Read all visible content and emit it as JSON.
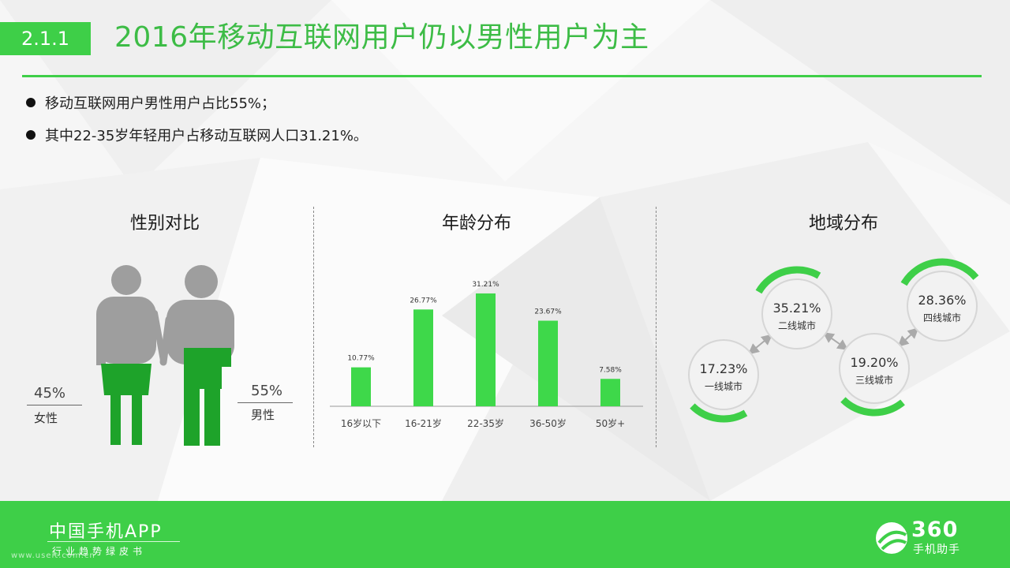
{
  "header": {
    "section": "2.1.1",
    "title": "2016年移动互联网用户仍以男性用户为主"
  },
  "bullets": [
    "移动互联网用户男性用户占比55%；",
    "其中22-35岁年轻用户占移动互联网人口31.21%。"
  ],
  "panels": {
    "gender_title": "性别对比",
    "age_title": "年龄分布",
    "region_title": "地域分布"
  },
  "gender": {
    "female_value": "45%",
    "female_label": "女性",
    "male_value": "55%",
    "male_label": "男性"
  },
  "colors": {
    "accent": "#3ecf48",
    "bar": "#3ed84a",
    "silhouette_gray": "#9e9e9e",
    "silhouette_green": "#1ea32a"
  },
  "chart_data": [
    {
      "type": "bar",
      "title": "年龄分布",
      "categories": [
        "16岁以下",
        "16-21岁",
        "22-35岁",
        "36-50岁",
        "50岁+"
      ],
      "values": [
        10.77,
        26.77,
        31.21,
        23.67,
        7.58
      ],
      "value_labels": [
        "10.77%",
        "26.77%",
        "31.21%",
        "23.67%",
        "7.58%"
      ],
      "ylim": [
        0,
        36
      ],
      "grid": false
    },
    {
      "type": "pie",
      "title": "地域分布",
      "categories": [
        "一线城市",
        "二线城市",
        "三线城市",
        "四线城市"
      ],
      "values": [
        17.23,
        35.21,
        19.2,
        28.36
      ],
      "value_labels": [
        "17.23%",
        "35.21%",
        "19.20%",
        "28.36%"
      ]
    }
  ],
  "footer": {
    "brand": "中国手机APP",
    "subtitle": "行业趋势绿皮书",
    "website": "www.useit.com.cn",
    "logo_number": "360",
    "logo_text": "手机助手"
  }
}
